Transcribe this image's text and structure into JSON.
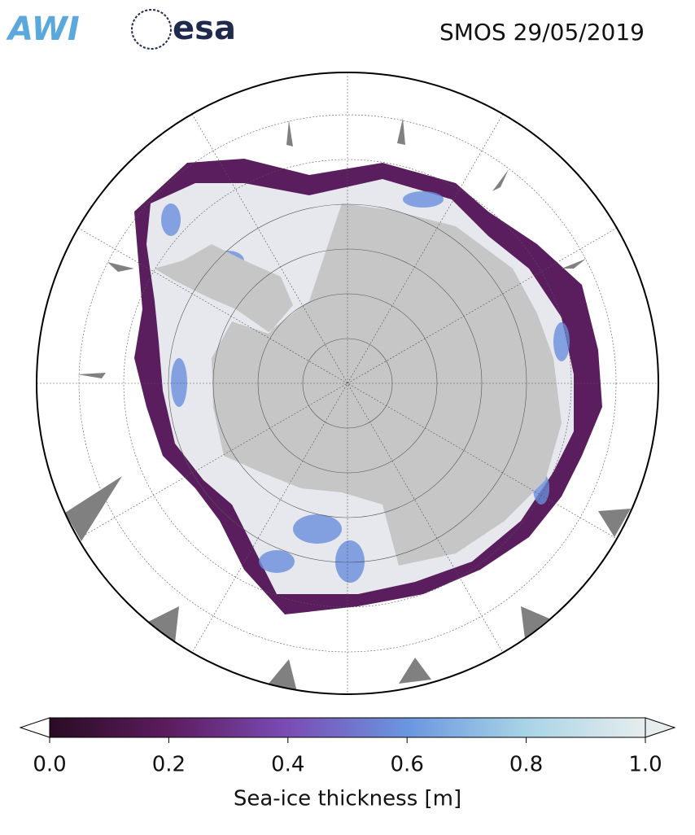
{
  "header": {
    "logos": [
      "AWI",
      "esa"
    ],
    "title": "SMOS 29/05/2019"
  },
  "colorbar": {
    "label": "Sea-ice thickness [m]",
    "lim": [
      0,
      1
    ],
    "ticks": [
      {
        "value": 0,
        "label": "0.0"
      },
      {
        "value": 0.2,
        "label": "0.2"
      },
      {
        "value": 0.4,
        "label": "0.4"
      },
      {
        "value": 0.6,
        "label": "0.6"
      },
      {
        "value": 0.8,
        "label": "0.8"
      },
      {
        "value": 1,
        "label": "1.0"
      }
    ],
    "colors": [
      "#2a0c24",
      "#5c1c5e",
      "#7a4cb5",
      "#6a96e0",
      "#a8d4e6",
      "#e6eded"
    ]
  }
}
